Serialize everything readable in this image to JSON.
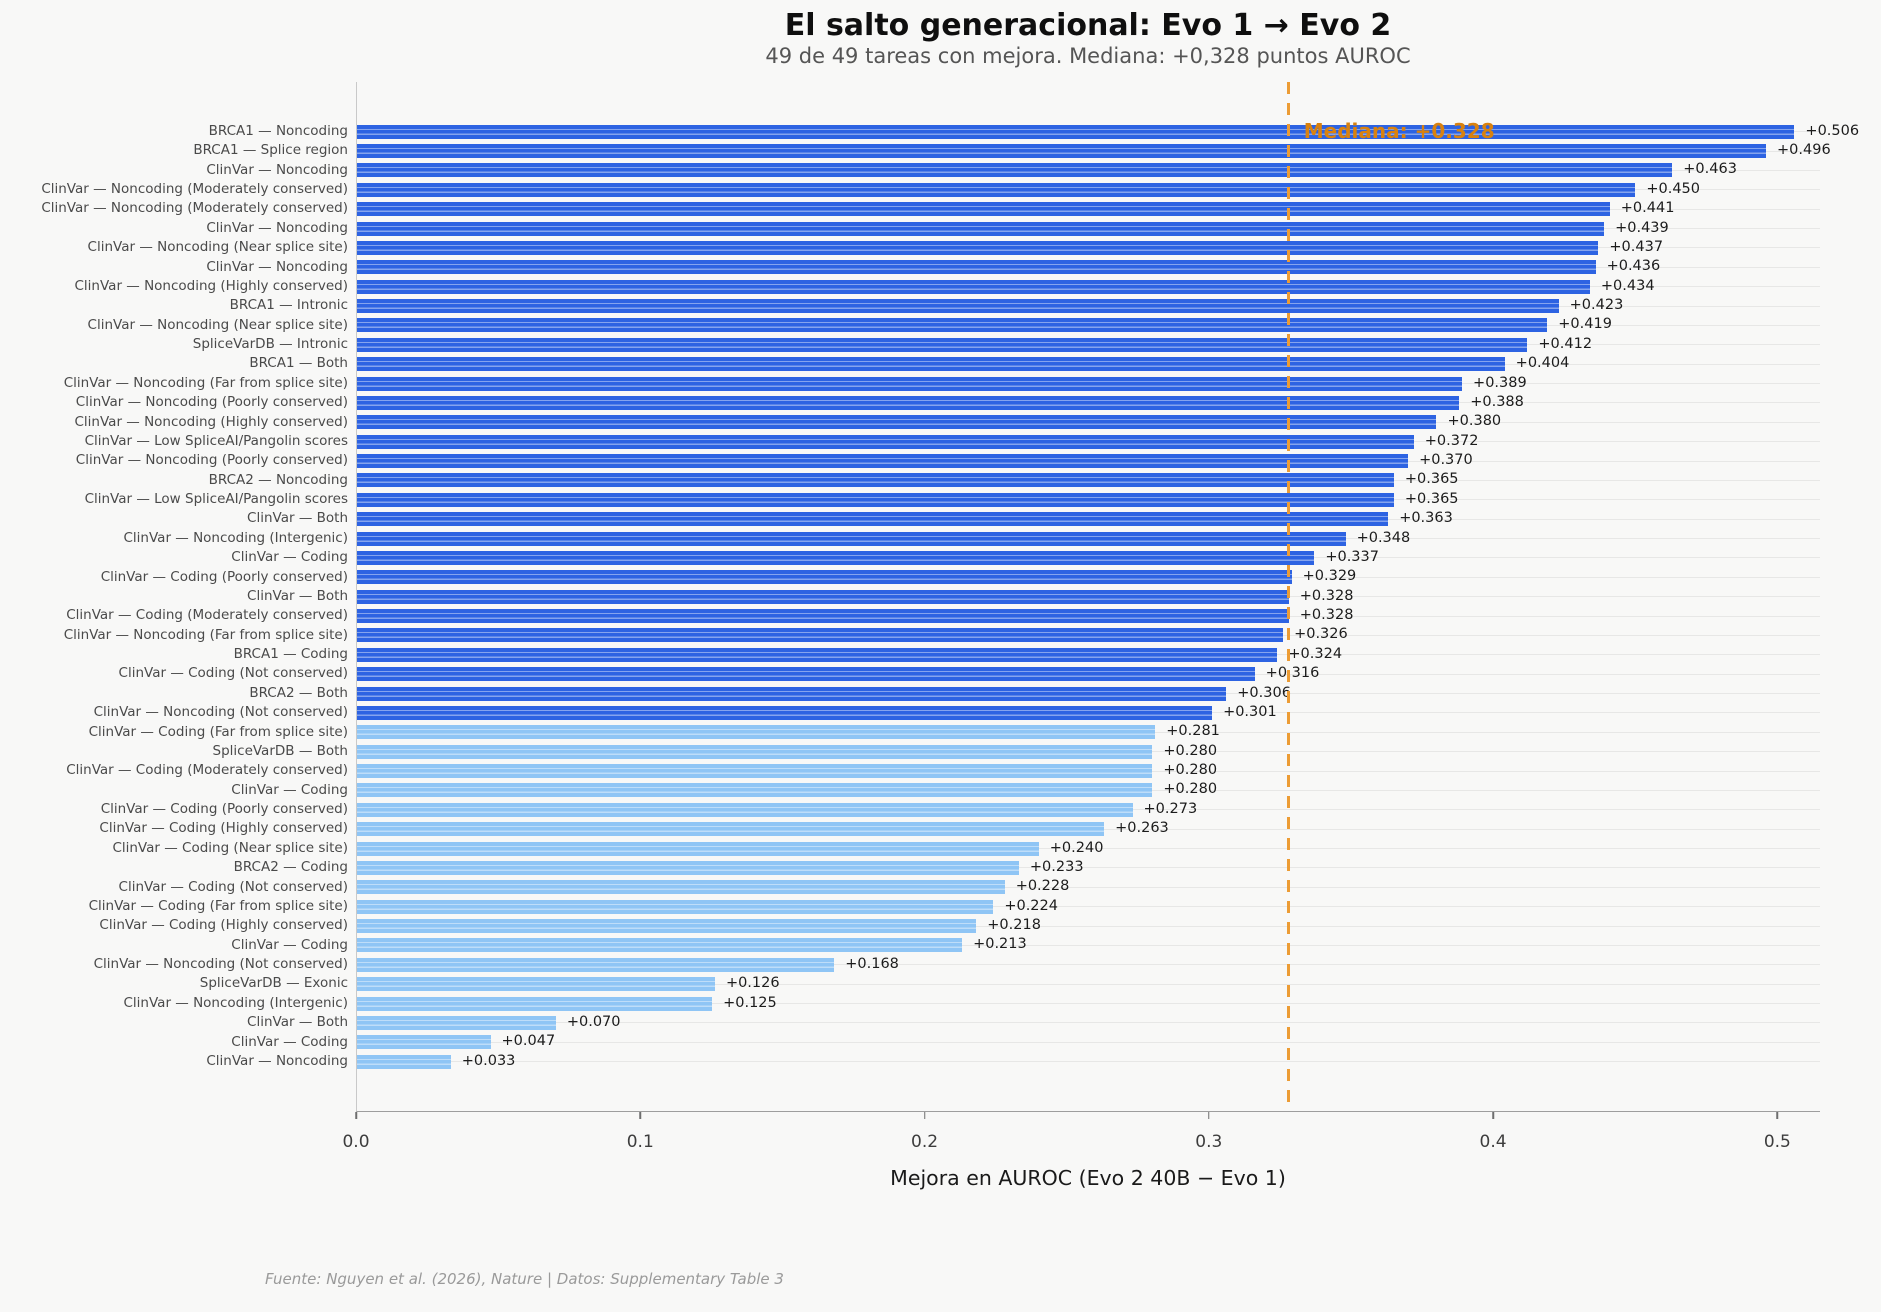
{
  "header": {
    "title": "El salto generacional: Evo 1 → Evo 2",
    "subtitle": "49 de 49 tareas con mejora. Mediana: +0,328 puntos AUROC"
  },
  "chart_data": {
    "type": "bar",
    "orientation": "horizontal",
    "title": "El salto generacional: Evo 1 → Evo 2",
    "subtitle": "49 de 49 tareas con mejora. Mediana: +0,328 puntos AUROC",
    "xlabel": "Mejora en AUROC (Evo 2 40B − Evo 1)",
    "ylabel": "",
    "xlim": [
      0,
      0.515
    ],
    "xticks": [
      0,
      0.1,
      0.2,
      0.3,
      0.4,
      0.5
    ],
    "xtick_labels": [
      "0.0",
      "0.1",
      "0.2",
      "0.3",
      "0.4",
      "0.5"
    ],
    "grid": "horizontal",
    "median": 0.328,
    "median_label": "Mediana: +0.328",
    "median_label_color": "#d9820f",
    "median_line_color": "#ec9c35",
    "color_rule": {
      "threshold": 0.3,
      "above": "#2d63e2",
      "below": "#8fc5f5"
    },
    "tasks": [
      {
        "label": "BRCA1 — Noncoding",
        "value": 0.506,
        "display": "+0.506"
      },
      {
        "label": "BRCA1 — Splice region",
        "value": 0.496,
        "display": "+0.496"
      },
      {
        "label": "ClinVar — Noncoding",
        "value": 0.463,
        "display": "+0.463"
      },
      {
        "label": "ClinVar — Noncoding (Moderately conserved)",
        "value": 0.45,
        "display": "+0.450"
      },
      {
        "label": "ClinVar — Noncoding (Moderately conserved)",
        "value": 0.441,
        "display": "+0.441"
      },
      {
        "label": "ClinVar — Noncoding",
        "value": 0.439,
        "display": "+0.439"
      },
      {
        "label": "ClinVar — Noncoding (Near splice site)",
        "value": 0.437,
        "display": "+0.437"
      },
      {
        "label": "ClinVar — Noncoding",
        "value": 0.436,
        "display": "+0.436"
      },
      {
        "label": "ClinVar — Noncoding (Highly conserved)",
        "value": 0.434,
        "display": "+0.434"
      },
      {
        "label": "BRCA1 — Intronic",
        "value": 0.423,
        "display": "+0.423"
      },
      {
        "label": "ClinVar — Noncoding (Near splice site)",
        "value": 0.419,
        "display": "+0.419"
      },
      {
        "label": "SpliceVarDB — Intronic",
        "value": 0.412,
        "display": "+0.412"
      },
      {
        "label": "BRCA1 — Both",
        "value": 0.404,
        "display": "+0.404"
      },
      {
        "label": "ClinVar — Noncoding (Far from splice site)",
        "value": 0.389,
        "display": "+0.389"
      },
      {
        "label": "ClinVar — Noncoding (Poorly conserved)",
        "value": 0.388,
        "display": "+0.388"
      },
      {
        "label": "ClinVar — Noncoding (Highly conserved)",
        "value": 0.38,
        "display": "+0.380"
      },
      {
        "label": "ClinVar — Low SpliceAI/Pangolin scores",
        "value": 0.372,
        "display": "+0.372"
      },
      {
        "label": "ClinVar — Noncoding (Poorly conserved)",
        "value": 0.37,
        "display": "+0.370"
      },
      {
        "label": "BRCA2 — Noncoding",
        "value": 0.365,
        "display": "+0.365"
      },
      {
        "label": "ClinVar — Low SpliceAI/Pangolin scores",
        "value": 0.365,
        "display": "+0.365"
      },
      {
        "label": "ClinVar — Both",
        "value": 0.363,
        "display": "+0.363"
      },
      {
        "label": "ClinVar — Noncoding (Intergenic)",
        "value": 0.348,
        "display": "+0.348"
      },
      {
        "label": "ClinVar — Coding",
        "value": 0.337,
        "display": "+0.337"
      },
      {
        "label": "ClinVar — Coding (Poorly conserved)",
        "value": 0.329,
        "display": "+0.329"
      },
      {
        "label": "ClinVar — Both",
        "value": 0.328,
        "display": "+0.328"
      },
      {
        "label": "ClinVar — Coding (Moderately conserved)",
        "value": 0.328,
        "display": "+0.328"
      },
      {
        "label": "ClinVar — Noncoding (Far from splice site)",
        "value": 0.326,
        "display": "+0.326"
      },
      {
        "label": "BRCA1 — Coding",
        "value": 0.324,
        "display": "+0.324"
      },
      {
        "label": "ClinVar — Coding (Not conserved)",
        "value": 0.316,
        "display": "+0.316"
      },
      {
        "label": "BRCA2 — Both",
        "value": 0.306,
        "display": "+0.306"
      },
      {
        "label": "ClinVar — Noncoding (Not conserved)",
        "value": 0.301,
        "display": "+0.301"
      },
      {
        "label": "ClinVar — Coding (Far from splice site)",
        "value": 0.281,
        "display": "+0.281"
      },
      {
        "label": "SpliceVarDB — Both",
        "value": 0.28,
        "display": "+0.280"
      },
      {
        "label": "ClinVar — Coding (Moderately conserved)",
        "value": 0.28,
        "display": "+0.280"
      },
      {
        "label": "ClinVar — Coding",
        "value": 0.28,
        "display": "+0.280"
      },
      {
        "label": "ClinVar — Coding (Poorly conserved)",
        "value": 0.273,
        "display": "+0.273"
      },
      {
        "label": "ClinVar — Coding (Highly conserved)",
        "value": 0.263,
        "display": "+0.263"
      },
      {
        "label": "ClinVar — Coding (Near splice site)",
        "value": 0.24,
        "display": "+0.240"
      },
      {
        "label": "BRCA2 — Coding",
        "value": 0.233,
        "display": "+0.233"
      },
      {
        "label": "ClinVar — Coding (Not conserved)",
        "value": 0.228,
        "display": "+0.228"
      },
      {
        "label": "ClinVar — Coding (Far from splice site)",
        "value": 0.224,
        "display": "+0.224"
      },
      {
        "label": "ClinVar — Coding (Highly conserved)",
        "value": 0.218,
        "display": "+0.218"
      },
      {
        "label": "ClinVar — Coding",
        "value": 0.213,
        "display": "+0.213"
      },
      {
        "label": "ClinVar — Noncoding (Not conserved)",
        "value": 0.168,
        "display": "+0.168"
      },
      {
        "label": "SpliceVarDB — Exonic",
        "value": 0.126,
        "display": "+0.126"
      },
      {
        "label": "ClinVar — Noncoding (Intergenic)",
        "value": 0.125,
        "display": "+0.125"
      },
      {
        "label": "ClinVar — Both",
        "value": 0.07,
        "display": "+0.070"
      },
      {
        "label": "ClinVar — Coding",
        "value": 0.047,
        "display": "+0.047"
      },
      {
        "label": "ClinVar — Noncoding",
        "value": 0.033,
        "display": "+0.033"
      }
    ]
  },
  "footer": {
    "source": "Fuente: Nguyen et al. (2026), Nature | Datos: Supplementary Table 3"
  }
}
